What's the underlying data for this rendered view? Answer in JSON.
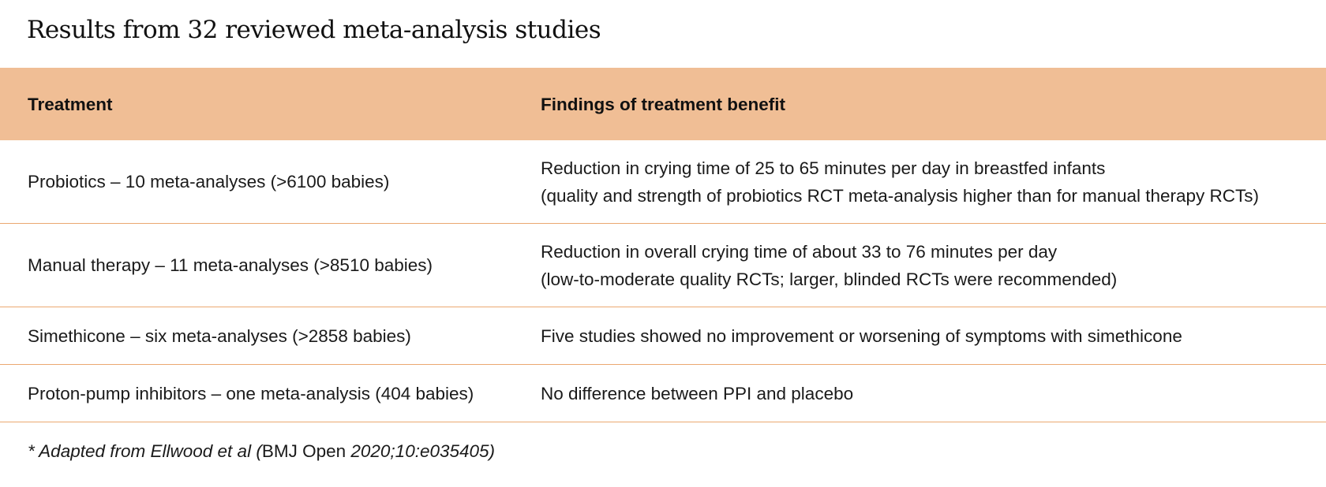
{
  "title": "Results from 32 reviewed meta-analysis studies",
  "table": {
    "headers": [
      "Treatment",
      "Findings of treatment benefit"
    ],
    "rows": [
      {
        "treatment": "Probiotics – 10 meta-analyses (>6100 babies)",
        "findings": [
          "Reduction in crying time of 25 to 65 minutes per day in breastfed infants",
          "(quality and strength of probiotics RCT meta-analysis higher than for manual therapy RCTs)"
        ]
      },
      {
        "treatment": "Manual therapy – 11 meta-analyses (>8510 babies)",
        "findings": [
          "Reduction in overall crying time of about 33 to 76 minutes per day",
          "(low-to-moderate quality RCTs; larger, blinded RCTs were recommended)"
        ]
      },
      {
        "treatment": "Simethicone – six meta-analyses (>2858 babies)",
        "findings": [
          "Five studies showed no improvement or worsening of symptoms with simethicone"
        ]
      },
      {
        "treatment": "Proton-pump inhibitors – one meta-analysis (404 babies)",
        "findings": [
          "No difference between PPI and placebo"
        ]
      }
    ]
  },
  "footnote": {
    "part1": "* Adapted from Ellwood et al (",
    "part2": "BMJ Open ",
    "part3": "2020;10:e035405)"
  },
  "colors": {
    "header_bg": "#f0be95",
    "row_divider": "#eba870"
  }
}
